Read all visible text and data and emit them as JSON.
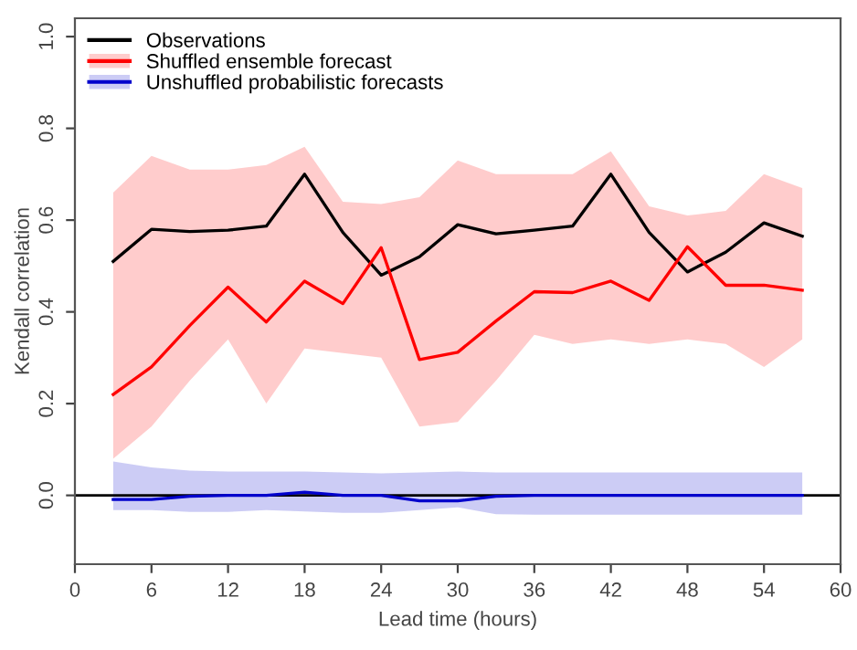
{
  "chart_data": {
    "type": "line",
    "xlabel": "Lead time (hours)",
    "ylabel": "Kendall correlation",
    "x": [
      3,
      6,
      9,
      12,
      15,
      18,
      21,
      24,
      27,
      30,
      33,
      36,
      39,
      42,
      45,
      48,
      51,
      54,
      57
    ],
    "series": [
      {
        "name": "Observations",
        "color": "#000000",
        "values": [
          0.51,
          0.58,
          0.575,
          0.578,
          0.587,
          0.7,
          0.573,
          0.48,
          0.52,
          0.59,
          0.57,
          0.578,
          0.587,
          0.7,
          0.573,
          0.487,
          0.53,
          0.594,
          0.565
        ]
      },
      {
        "name": "Shuffled ensemble forecast",
        "color": "#ff0000",
        "values": [
          0.22,
          0.28,
          0.37,
          0.454,
          0.378,
          0.467,
          0.418,
          0.54,
          0.296,
          0.312,
          0.38,
          0.444,
          0.442,
          0.467,
          0.425,
          0.542,
          0.458,
          0.458,
          0.447
        ],
        "lower": [
          0.08,
          0.15,
          0.25,
          0.34,
          0.2,
          0.32,
          0.31,
          0.3,
          0.15,
          0.16,
          0.25,
          0.35,
          0.33,
          0.34,
          0.33,
          0.34,
          0.33,
          0.28,
          0.34
        ],
        "upper": [
          0.66,
          0.74,
          0.71,
          0.71,
          0.72,
          0.76,
          0.64,
          0.635,
          0.65,
          0.73,
          0.7,
          0.7,
          0.7,
          0.75,
          0.63,
          0.61,
          0.62,
          0.7,
          0.67
        ]
      },
      {
        "name": "Unshuffled probabilistic forecasts",
        "color": "#0000cc",
        "values": [
          -0.009,
          -0.009,
          -0.002,
          0.0,
          0.0,
          0.007,
          0.0,
          0.0,
          -0.012,
          -0.012,
          -0.002,
          0.0,
          0.0,
          0.0,
          0.0,
          0.0,
          0.0,
          0.0,
          0.0
        ],
        "lower": [
          -0.032,
          -0.032,
          -0.036,
          -0.036,
          -0.032,
          -0.035,
          -0.038,
          -0.038,
          -0.032,
          -0.026,
          -0.041,
          -0.042,
          -0.042,
          -0.042,
          -0.042,
          -0.042,
          -0.042,
          -0.042,
          -0.042
        ],
        "upper": [
          0.074,
          0.061,
          0.054,
          0.052,
          0.052,
          0.052,
          0.05,
          0.048,
          0.05,
          0.052,
          0.05,
          0.05,
          0.05,
          0.05,
          0.05,
          0.05,
          0.05,
          0.05,
          0.05
        ]
      }
    ],
    "ref_lines": [
      {
        "axis": "y",
        "value": 0,
        "color": "#000000"
      }
    ],
    "xlim": [
      0,
      60
    ],
    "xticks": [
      0,
      6,
      12,
      18,
      24,
      30,
      36,
      42,
      48,
      54,
      60
    ],
    "ylim": [
      -0.15,
      1.04
    ],
    "yticks": [
      {
        "value": 0,
        "label": "0.0"
      },
      {
        "value": 0.2,
        "label": "0.2"
      },
      {
        "value": 0.4,
        "label": "0.4"
      },
      {
        "value": 0.6,
        "label": "0.6"
      },
      {
        "value": 0.8,
        "label": "0.8"
      },
      {
        "value": 1,
        "label": "1.0"
      }
    ],
    "legend": "top left",
    "grid": false,
    "marker": "none",
    "line_style": "solid"
  }
}
